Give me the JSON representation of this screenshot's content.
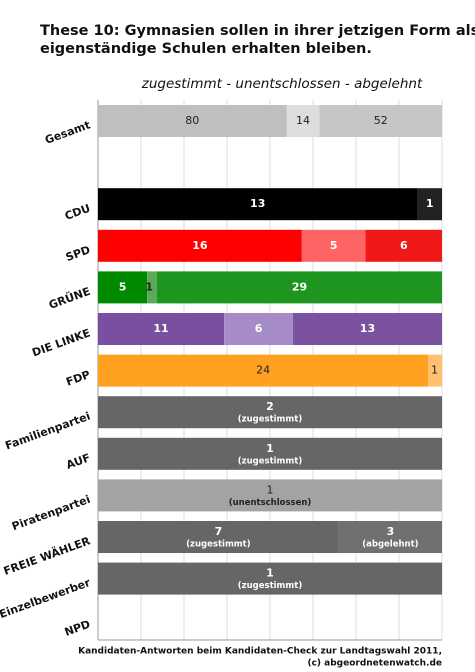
{
  "chart_data": {
    "type": "bar",
    "stacked": true,
    "normalized": true,
    "title": [
      "These 10: Gymnasien sollen in ihrer jetzigen Form als",
      "eigenständige Schulen erhalten bleiben."
    ],
    "subtitle": "zugestimmt - unentschlossen - abgelehnt",
    "footer": [
      "Kandidaten-Antworten beim Kandidaten-Check zur Landtagswahl 2011,",
      "(c) abgeordnetenwatch.de"
    ],
    "rows": [
      {
        "label": "Gesamt",
        "text_color": "#222222",
        "segments": [
          {
            "value": 80,
            "color": "#bfbfbf"
          },
          {
            "value": 14,
            "color": "#dddddd"
          },
          {
            "value": 52,
            "color": "#c6c6c6"
          }
        ]
      },
      {
        "label": null,
        "segments": []
      },
      {
        "label": "CDU",
        "text_color": "#ffffff",
        "segments": [
          {
            "value": 13,
            "color": "#000000"
          },
          {
            "value": 1,
            "color": "#222222"
          }
        ]
      },
      {
        "label": "SPD",
        "text_color": "#ffffff",
        "segments": [
          {
            "value": 16,
            "color": "#ff0000"
          },
          {
            "value": 5,
            "color": "#ff6464"
          },
          {
            "value": 6,
            "color": "#f01818"
          }
        ]
      },
      {
        "label": "GRÜNE",
        "text_color": "#ffffff",
        "segments": [
          {
            "value": 5,
            "color": "#008a00"
          },
          {
            "value": 1,
            "color": "#5aaa5a"
          },
          {
            "value": 29,
            "color": "#1e951e"
          }
        ]
      },
      {
        "label": "DIE LINKE",
        "text_color": "#ffffff",
        "segments": [
          {
            "value": 11,
            "color": "#7a4f9f"
          },
          {
            "value": 6,
            "color": "#a68cc6"
          },
          {
            "value": 13,
            "color": "#7b529f"
          }
        ]
      },
      {
        "label": "FDP",
        "text_color": "#222222",
        "segments": [
          {
            "value": 24,
            "color": "#ffa020"
          },
          {
            "value": 1,
            "color": "#ffc070"
          }
        ]
      },
      {
        "label": "Familienpartei",
        "text_color": "#ffffff",
        "segments": [
          {
            "value": 2,
            "color": "#666666",
            "note": "(zugestimmt)"
          }
        ]
      },
      {
        "label": "AUF",
        "text_color": "#ffffff",
        "segments": [
          {
            "value": 1,
            "color": "#666666",
            "note": "(zugestimmt)"
          }
        ]
      },
      {
        "label": "Piratenpartei",
        "text_color": "#222222",
        "segments": [
          {
            "value": 1,
            "color": "#a3a3a3",
            "note": "(unentschlossen)"
          }
        ]
      },
      {
        "label": "FREIE WÄHLER",
        "text_color": "#ffffff",
        "segments": [
          {
            "value": 7,
            "color": "#666666",
            "note": "(zugestimmt)"
          },
          {
            "value": 3,
            "color": "#707070",
            "note": "(abgelehnt)"
          }
        ]
      },
      {
        "label": "Einzelbewerber",
        "text_color": "#ffffff",
        "segments": [
          {
            "value": 1,
            "color": "#666666",
            "note": "(zugestimmt)"
          }
        ]
      },
      {
        "label": "NPD",
        "segments": []
      }
    ]
  }
}
